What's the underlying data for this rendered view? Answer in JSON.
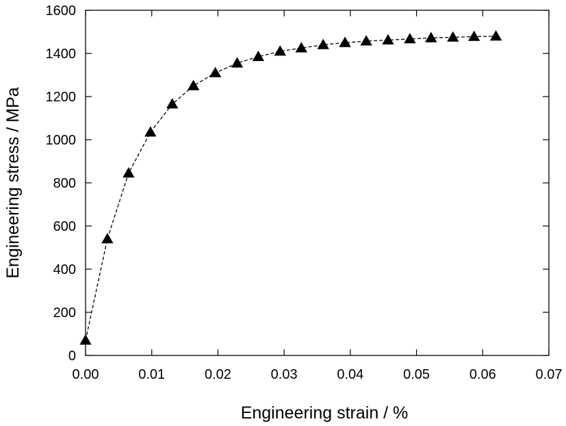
{
  "chart_data": {
    "type": "line",
    "title": "",
    "xlabel": "Engineering strain / %",
    "ylabel": "Engineering stress / MPa",
    "xlim": [
      0,
      0.07
    ],
    "ylim": [
      0,
      1600
    ],
    "x_ticks": [
      "0.00",
      "0.01",
      "0.02",
      "0.03",
      "0.04",
      "0.05",
      "0.06",
      "0.07"
    ],
    "y_ticks": [
      "0",
      "200",
      "400",
      "600",
      "800",
      "1000",
      "1200",
      "1400",
      "1600"
    ],
    "grid": false,
    "legend": "none",
    "line_style": "dashed",
    "marker": "filled-triangle",
    "marker_color": "#000000",
    "series": [
      {
        "x": [
          0.0,
          0.0033,
          0.0065,
          0.0098,
          0.0131,
          0.0163,
          0.0196,
          0.0229,
          0.0261,
          0.0294,
          0.0326,
          0.0359,
          0.0392,
          0.0424,
          0.0457,
          0.049,
          0.0522,
          0.0555,
          0.0587,
          0.062
        ],
        "y": [
          70,
          540,
          845,
          1035,
          1165,
          1250,
          1310,
          1355,
          1385,
          1410,
          1425,
          1440,
          1450,
          1457,
          1462,
          1467,
          1472,
          1475,
          1478,
          1480
        ]
      }
    ]
  }
}
